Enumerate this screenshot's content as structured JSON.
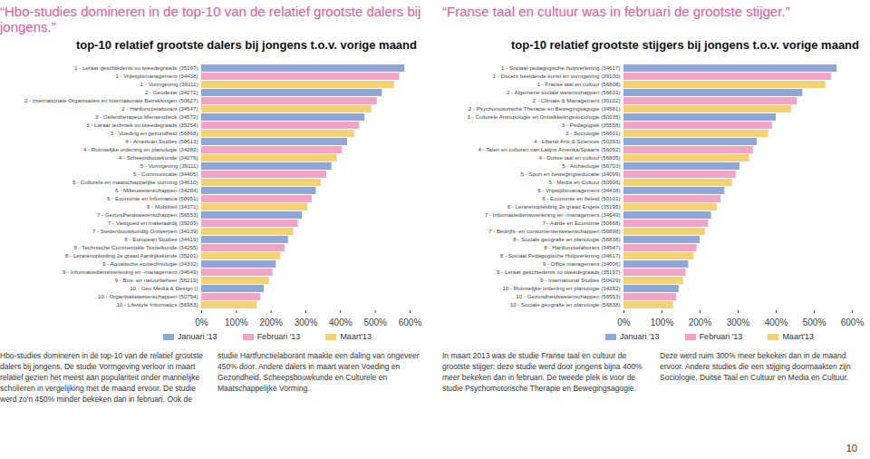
{
  "chart_data": [
    {
      "type": "bar",
      "orientation": "horizontal",
      "title": "“Hbo-studies domineren in de top-10 van de relatief grootste dalers bij jongens.”",
      "subtitle": "top-10 relatief grootste dalers bij jongens t.o.v. vorige maand",
      "categories": [
        "1 - Leraar geschiedenis vo tweedegraads (35197)",
        "1 - Vrijetijdsmanagement (34438)",
        "1 - Vormgeving (39111)",
        "2 - Geodesie (34272)",
        "2 - Internationale Organisaties en Internationale Betrekkingen (50627)",
        "2 - Hartfunctielaborant (34547)",
        "3 - Oefentherapeut-Mensendieck (34572)",
        "3 - Leraar techniek vo tweedegraads (35254)",
        "3 - Voeding en gezondheid (56868)",
        "4 - American Studies (50613)",
        "4 - Ruimtelijke ordening en planologie (34282)",
        "4 - Scheepsbouwkunde (34276)",
        "5 - Vormgeving (39111)",
        "5 - Communicatie (34405)",
        "5 - Culturele en maatschappelijke vorming (34610)",
        "6 - Milieuwetenschappen (34284)",
        "6 - Economie en Informatica (50951)",
        "6 - Mobiliteit (34371)",
        "7 - Gezondheidswetenschappen (56553)",
        "7 - Vastgoed en makelaardij (39209)",
        "7 - Stedenbouwkundig Ontwerpen (34139)",
        "8 - European Studies (34419)",
        "8 - Technische Commerciële Textielkunde (34255)",
        "8 - Lerarenopleiding 2e graad Aardrijkskunde (35201)",
        "9 - Aquatische ecotechnologie (34332)",
        "9 - Informatiedienstverlening en -management (34649)",
        "9 - Bos- en natuurbeheer (56219)",
        "10 - Geo Media & Design ()",
        "10 - Organisatiewetenschappen (50754)",
        "10 - Lifestyle Informatics (56983)"
      ],
      "series": [
        {
          "name": "Januari '13",
          "color": "#8fa6d8",
          "values": [
            585,
            null,
            null,
            520,
            null,
            null,
            470,
            null,
            null,
            420,
            null,
            null,
            375,
            null,
            null,
            330,
            null,
            null,
            290,
            null,
            null,
            250,
            null,
            null,
            215,
            null,
            null,
            180,
            null,
            null
          ]
        },
        {
          "name": "Februari '13",
          "color": "#f3a3c6",
          "values": [
            null,
            570,
            null,
            null,
            505,
            null,
            null,
            455,
            null,
            null,
            405,
            null,
            null,
            360,
            null,
            null,
            318,
            null,
            null,
            278,
            null,
            null,
            240,
            null,
            null,
            205,
            null,
            null,
            170,
            null
          ]
        },
        {
          "name": "Maart'13",
          "color": "#f4d274",
          "values": [
            null,
            null,
            555,
            null,
            null,
            490,
            null,
            null,
            440,
            null,
            null,
            390,
            null,
            null,
            345,
            null,
            null,
            305,
            null,
            null,
            265,
            null,
            null,
            228,
            null,
            null,
            195,
            null,
            null,
            160
          ]
        }
      ],
      "xlim": [
        0,
        600
      ],
      "xticks": [
        {
          "value": 0,
          "label": "0%"
        },
        {
          "value": 100,
          "label": "100%"
        },
        {
          "value": 200,
          "label": "200%"
        },
        {
          "value": 300,
          "label": "300%"
        },
        {
          "value": 400,
          "label": "400%"
        },
        {
          "value": 500,
          "label": "500%"
        },
        {
          "value": 600,
          "label": "600%"
        }
      ],
      "grid": false,
      "legend": "bottom",
      "annotations": [
        "Hbo-studies domineren in de top-10 van de relatief grootste dalers bij jongens. De studie Vormgeving verloor in maart relatief gezien het meest aan populariteit onder mannelijke scholieren in vergelijking met de maand ervoor. De studie werd zo'n 450% minder bekeken dan in februari. Ook de studie Hartfunctielaborant maakte een daling van ongeveer 450% door. Andere dalers in maart waren Voeding en Gezondheid, Scheepsbouwkunde en Culturele en Maatschappelijke Vorming."
      ]
    },
    {
      "type": "bar",
      "orientation": "horizontal",
      "title": "“Franse taal en cultuur was in februari de grootste stijger.”",
      "subtitle": "top-10 relatief grootste stijgers bij jongens t.o.v. vorige maand",
      "categories": [
        "1 - Sociaal-pedagogische hulpverlening (34617)",
        "1 - Docent beeldende kunst en vormgeving (39100)",
        "1 - Franse taal en cultuur (56808)",
        "2 - Algemene sociale wetenschappen (56631)",
        "2 - Climate & Management (30102)",
        "2 - Psychomotorische Therapie en Bewegingsagogie (34581)",
        "3 - Culturele Antropologie en Ontwikkelingssociologie (50035)",
        "3 - Pedagogiek (35558)",
        "3 - Sociologie (56601)",
        "4 - Liberal Arts & Sciences (50393)",
        "4 - Talen en culturen van Latijns Amerika/Spaans (56052)",
        "4 - Duitse taal en cultuur (56805)",
        "5 - Archeologie (56703)",
        "5 - Sport en bewegingseducatie (34099)",
        "5 - Media en Cultuur (50906)",
        "6 - Vrijetijdsmanagement (34438)",
        "6 - Economie en beleid (50101)",
        "6 - Lerarenopleiding 2e graad Engels (35195)",
        "7 - Informatiedienstverlening en -management (34649)",
        "7 - Aarde en Economie (50668)",
        "7 - Bedrijfs- en consumentenwetenschappen (56898)",
        "8 - Sociale geografie en planologie (56838)",
        "8 - Hartfunctielaborant (34547)",
        "8 - Sociaal Pedagogische Hulpverlening (34617)",
        "9 - Office management (34006)",
        "9 - Leraar geschiedenis vo tweedegraads (35197)",
        "9 - International Studies (50429)",
        "10 - Ruimtelijke ordening en planologie (34282)",
        "10 - Gezondheidswetenschappen (56553)",
        "10 - Sociale geografie en planologie (56838)"
      ],
      "series": [
        {
          "name": "Januari '13",
          "color": "#8fa6d8",
          "values": [
            560,
            null,
            null,
            470,
            null,
            null,
            400,
            null,
            null,
            350,
            null,
            null,
            305,
            null,
            null,
            265,
            null,
            null,
            230,
            null,
            null,
            200,
            null,
            null,
            170,
            null,
            null,
            145,
            null,
            null
          ]
        },
        {
          "name": "Februari '13",
          "color": "#f3a3c6",
          "values": [
            null,
            545,
            null,
            null,
            455,
            null,
            null,
            390,
            null,
            null,
            340,
            null,
            null,
            295,
            null,
            null,
            255,
            null,
            null,
            222,
            null,
            null,
            192,
            null,
            null,
            163,
            null,
            null,
            138,
            null
          ]
        },
        {
          "name": "Maart'13",
          "color": "#f4d274",
          "values": [
            null,
            null,
            530,
            null,
            null,
            440,
            null,
            null,
            380,
            null,
            null,
            330,
            null,
            null,
            285,
            null,
            null,
            245,
            null,
            null,
            214,
            null,
            null,
            184,
            null,
            null,
            156,
            null,
            null,
            130
          ]
        }
      ],
      "xlim": [
        0,
        600
      ],
      "xticks": [
        {
          "value": 0,
          "label": "0%"
        },
        {
          "value": 100,
          "label": "100%"
        },
        {
          "value": 200,
          "label": "200%"
        },
        {
          "value": 300,
          "label": "300%"
        },
        {
          "value": 400,
          "label": "400%"
        },
        {
          "value": 500,
          "label": "500%"
        },
        {
          "value": 600,
          "label": "600%"
        }
      ],
      "grid": false,
      "legend": "bottom",
      "annotations": [
        "In maart 2013 was de studie Franse taal en cultuur de grootste stijger: deze studie werd door jongens bijna 400% meer bekeken dan in februari. De tweede plek is voor de studie Psychomotorische Therapie en Bewegingsagogie. Deze werd ruim 300% meer bekeken dan in de maand ervoor. Andere studies die een stijging doormaakten zijn Sociologie, Duitse Taal en Cultuur en Media en Cultuur."
      ]
    }
  ],
  "page_number": 10
}
